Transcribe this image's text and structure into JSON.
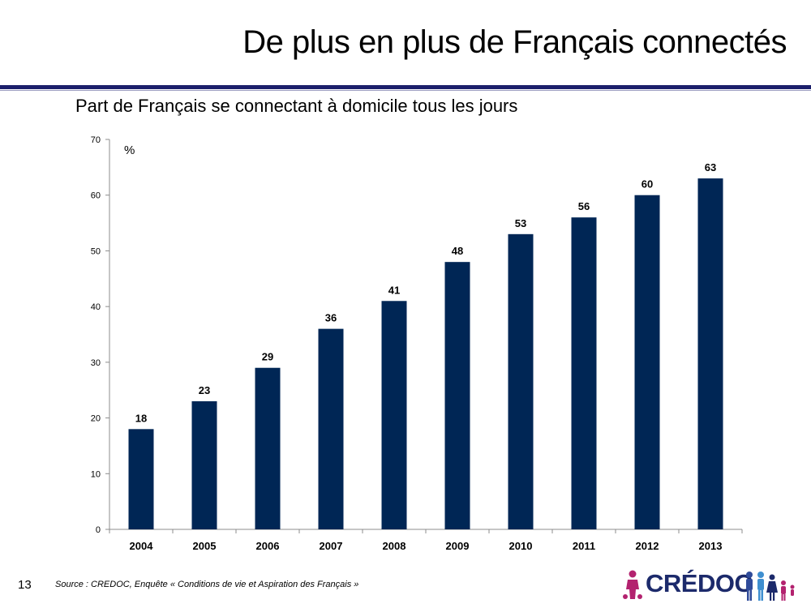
{
  "slide": {
    "title": "De plus en plus de Français connectés",
    "subtitle": "Part de Français se connectant à domicile tous les jours",
    "page_number": "13",
    "source": "Source : CREDOC, Enquête « Conditions de vie et Aspiration des Français »",
    "logo_text": "CRÉDOC"
  },
  "colors": {
    "bar": "#002655",
    "rule": "#1c1f6b",
    "logo_text": "#1c2a6b",
    "logo_accent": "#b3226f"
  },
  "chart_data": {
    "type": "bar",
    "title": "",
    "unit_label": "%",
    "categories": [
      "2004",
      "2005",
      "2006",
      "2007",
      "2008",
      "2009",
      "2010",
      "2011",
      "2012",
      "2013"
    ],
    "series": [
      {
        "values": [
          18,
          23,
          29,
          36,
          41,
          48,
          53,
          56,
          60,
          63
        ]
      }
    ],
    "data_labels": [
      "18",
      "23",
      "29",
      "36",
      "41",
      "48",
      "53",
      "56",
      "60",
      "63"
    ],
    "ylim": [
      0,
      70
    ],
    "yticks": [
      0,
      10,
      20,
      30,
      40,
      50,
      60,
      70
    ],
    "grid": false,
    "legend": "none"
  }
}
